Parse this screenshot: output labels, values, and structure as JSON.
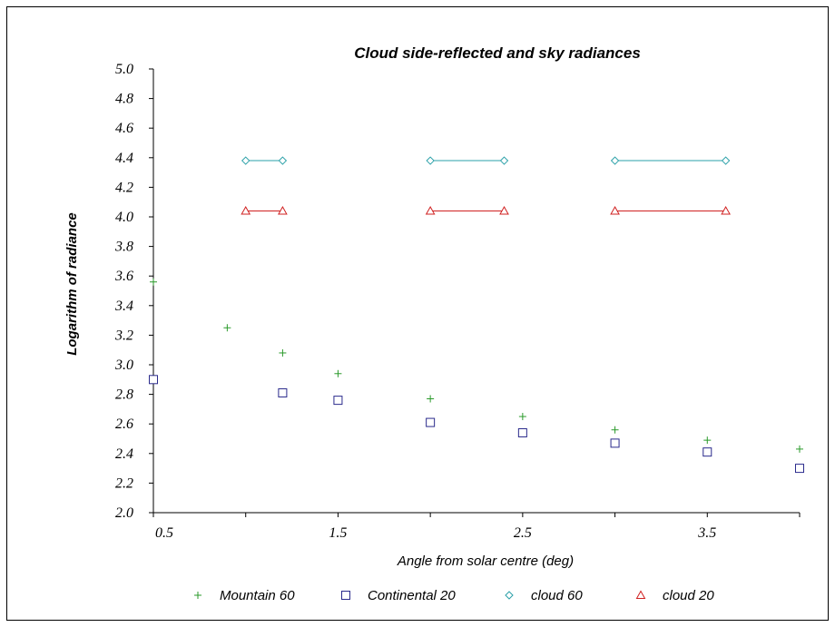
{
  "chart_data": {
    "type": "scatter",
    "title": "Cloud side-reflected and sky radiances",
    "xlabel": "Angle from solar centre (deg)",
    "ylabel": "Logarithm of radiance",
    "xlim": [
      0.5,
      4.0
    ],
    "ylim": [
      2.0,
      5.0
    ],
    "x_ticks": [
      {
        "value": 0.5,
        "label": "0.5"
      },
      {
        "value": 1.5,
        "label": "1.5"
      },
      {
        "value": 2.5,
        "label": "2.5"
      },
      {
        "value": 3.5,
        "label": "3.5"
      }
    ],
    "y_ticks": [
      "2.0",
      "2.2",
      "2.4",
      "2.6",
      "2.8",
      "3.0",
      "3.2",
      "3.4",
      "3.6",
      "3.8",
      "4.0",
      "4.2",
      "4.4",
      "4.6",
      "4.8",
      "5.0"
    ],
    "grid": false,
    "legend_position": "bottom",
    "series": [
      {
        "name": "Mountain 60",
        "marker": "plus",
        "color": "#2a9a2a",
        "x": [
          0.5,
          0.9,
          1.2,
          1.5,
          2.0,
          2.5,
          3.0,
          3.5,
          4.0
        ],
        "y": [
          3.56,
          3.25,
          3.08,
          2.94,
          2.77,
          2.65,
          2.56,
          2.49,
          2.43
        ]
      },
      {
        "name": "Continental 20",
        "marker": "square",
        "color": "#2a2a8c",
        "x": [
          0.5,
          1.2,
          1.5,
          2.0,
          2.5,
          3.0,
          3.5,
          4.0
        ],
        "y": [
          2.9,
          2.81,
          2.76,
          2.61,
          2.54,
          2.47,
          2.41,
          2.3
        ]
      },
      {
        "name": "cloud 60",
        "marker": "diamond",
        "color": "#2aa0a8",
        "segments": [
          {
            "x": [
              1.0,
              1.2
            ],
            "y": [
              4.38,
              4.38
            ]
          },
          {
            "x": [
              2.0,
              2.4
            ],
            "y": [
              4.38,
              4.38
            ]
          },
          {
            "x": [
              3.0,
              3.6
            ],
            "y": [
              4.38,
              4.38
            ]
          }
        ]
      },
      {
        "name": "cloud 20",
        "marker": "triangle",
        "color": "#d02020",
        "segments": [
          {
            "x": [
              1.0,
              1.2
            ],
            "y": [
              4.04,
              4.04
            ]
          },
          {
            "x": [
              2.0,
              2.4
            ],
            "y": [
              4.04,
              4.04
            ]
          },
          {
            "x": [
              3.0,
              3.6
            ],
            "y": [
              4.04,
              4.04
            ]
          }
        ]
      }
    ]
  }
}
